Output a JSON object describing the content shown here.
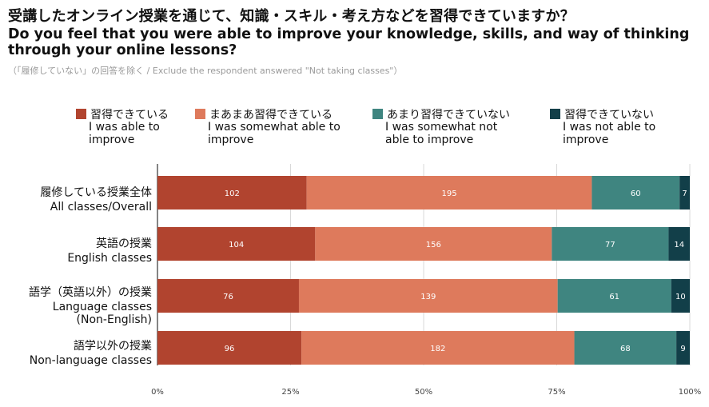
{
  "title_jp": "受講したオンライン授業を通じて、知識・スキル・考え方などを習得できていますか？",
  "title_en": "Do you feel that you were able to improve your knowledge, skills, and way of thinking through your online lessons?",
  "note": "（「履修していない」の回答を除く / Exclude the respondent answered \"Not taking classes\"）",
  "colors": {
    "s1": "#b1442f",
    "s2": "#de7a5c",
    "s3": "#3f8580",
    "s4": "#123f49",
    "grid": "#d9d9d9",
    "axis": "#333333"
  },
  "legend": [
    {
      "jp": "習得できている",
      "en": "I was able to improve"
    },
    {
      "jp": "まあまあ習得できている",
      "en": "I was somewhat able to improve"
    },
    {
      "jp": "あまり習得できていない",
      "en": "I was somewhat not able to improve"
    },
    {
      "jp": "習得できていない",
      "en": "I was not able to improve"
    }
  ],
  "categories": [
    {
      "jp": "履修している授業全体",
      "en": "All classes/Overall"
    },
    {
      "jp": "英語の授業",
      "en": "English classes"
    },
    {
      "jp": "語学（英語以外）の授業",
      "en": "Language classes (Non-English)"
    },
    {
      "jp": "語学以外の授業",
      "en": "Non-language classes"
    }
  ],
  "chart_data": {
    "type": "bar",
    "orientation": "horizontal",
    "stacked": "100%",
    "categories": [
      "All classes/Overall",
      "English classes",
      "Language classes (Non-English)",
      "Non-language classes"
    ],
    "series": [
      {
        "name": "I was able to improve",
        "values": [
          102,
          104,
          76,
          96
        ]
      },
      {
        "name": "I was somewhat able to improve",
        "values": [
          195,
          156,
          139,
          182
        ]
      },
      {
        "name": "I was somewhat not able to improve",
        "values": [
          60,
          77,
          61,
          68
        ]
      },
      {
        "name": "I was not able to improve",
        "values": [
          7,
          14,
          10,
          9
        ]
      }
    ],
    "x_ticks": [
      "0%",
      "25%",
      "50%",
      "75%",
      "100%"
    ],
    "xlim": [
      0,
      100
    ],
    "grid": true,
    "legend_position": "top"
  }
}
